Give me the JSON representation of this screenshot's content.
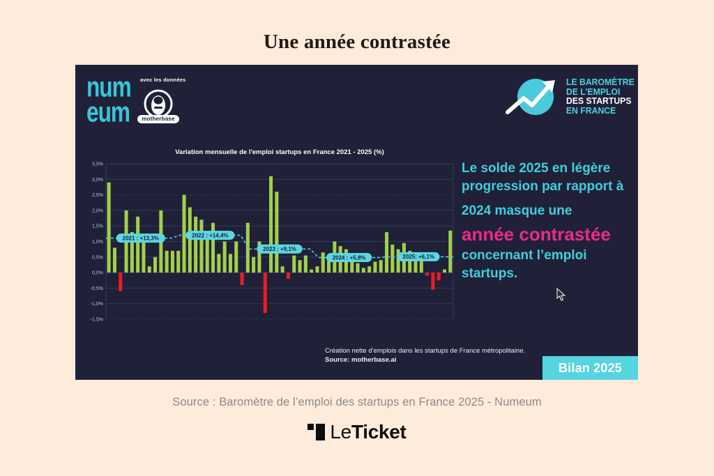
{
  "page": {
    "title": "Une année contrastée",
    "source_caption": "Source : Baromètre de l’emploi des startups en France 2025 - Numeum",
    "brand": {
      "le": "Le",
      "ticket": "Ticket"
    }
  },
  "panel": {
    "header": {
      "numeum_line1": "num",
      "numeum_line2": "eum",
      "with_data_label": "avec les données",
      "motherbase_label": "motherbase",
      "barometer_lines": [
        {
          "text": "LE BAROMÈTRE",
          "color": "#4fd0e0"
        },
        {
          "text": "DE L’EMPLOI",
          "color": "#4fd0e0"
        },
        {
          "text": "DES STARTUPS",
          "color": "#ffffff"
        },
        {
          "text": "EN FRANCE",
          "color": "#4fd0e0"
        }
      ]
    },
    "message": {
      "line1": "Le solde 2025 en légère progression par rapport à",
      "line2": "2024 masque une",
      "highlight": "année contrastée",
      "line3": "concernant l’emploi startups."
    },
    "footnote_line1": "Création nette d’emplois dans les startups de France métropolitaine.",
    "footnote_line2": "Source: motherbase.ai",
    "badge": "Bilan 2025"
  },
  "chart_data": {
    "type": "bar",
    "title": "Variation mensuelle de l'emploi startups en France 2021 - 2025 (%)",
    "xlabel": "",
    "ylabel": "",
    "ylim": [
      -1.5,
      3.5
    ],
    "grid": true,
    "months_per_year": 12,
    "y_tick_labels": [
      "3,5%",
      "3,0%",
      "2,5%",
      "2,0%",
      "1,5%",
      "1,0%",
      "0,5%",
      "0,0%",
      "-0,5%",
      "-1,0%",
      "-1,5%"
    ],
    "dotted_tick_values": [
      2.5,
      -1.5
    ],
    "annotation_style": "dashed cyan step line at each year average with label pill",
    "years": [
      {
        "year": "2021",
        "annual_total": "+13,3%",
        "label": "2021 : +13,3%",
        "values": [
          2.9,
          0.8,
          -0.6,
          2.0,
          1.3,
          1.8,
          1.0,
          0.2,
          0.5,
          2.0,
          0.7,
          0.7
        ]
      },
      {
        "year": "2022",
        "annual_total": "+14,4%",
        "label": "2022 : +14,4%",
        "values": [
          0.7,
          2.5,
          2.1,
          1.8,
          1.7,
          1.2,
          1.6,
          0.6,
          1.0,
          0.6,
          1.0,
          -0.4
        ]
      },
      {
        "year": "2023",
        "annual_total": "+9,1%",
        "label": "2023 : +9,1%",
        "values": [
          1.6,
          0.5,
          1.0,
          -1.3,
          3.1,
          2.6,
          0.2,
          -0.2,
          0.55,
          0.4,
          0.55,
          0.1
        ]
      },
      {
        "year": "2024",
        "annual_total": "+5,8%",
        "label": "2024 : +5,8%",
        "values": [
          0.2,
          0.65,
          0.45,
          1.0,
          0.85,
          0.75,
          0.5,
          0.3,
          0.15,
          0.2,
          0.35,
          0.4
        ]
      },
      {
        "year": "2025",
        "annual_total": "+6,1%",
        "label": "2025: +6,1%",
        "values": [
          1.3,
          0.9,
          0.75,
          0.95,
          0.7,
          0.55,
          0.4,
          -0.1,
          -0.55,
          -0.25,
          0.1,
          1.35
        ]
      }
    ],
    "colors": {
      "positive_bar": "#a3cf4b",
      "negative_bar": "#ee1b24",
      "annotation_line": "#4fd0dd",
      "annotation_pill_bg": "#5dd6e2",
      "annotation_pill_text": "#0f2137",
      "grid_line": "#303a5e",
      "tick_text": "#b7c1dd",
      "title_text": "#ffffff",
      "panel_bg": "#202138"
    }
  }
}
